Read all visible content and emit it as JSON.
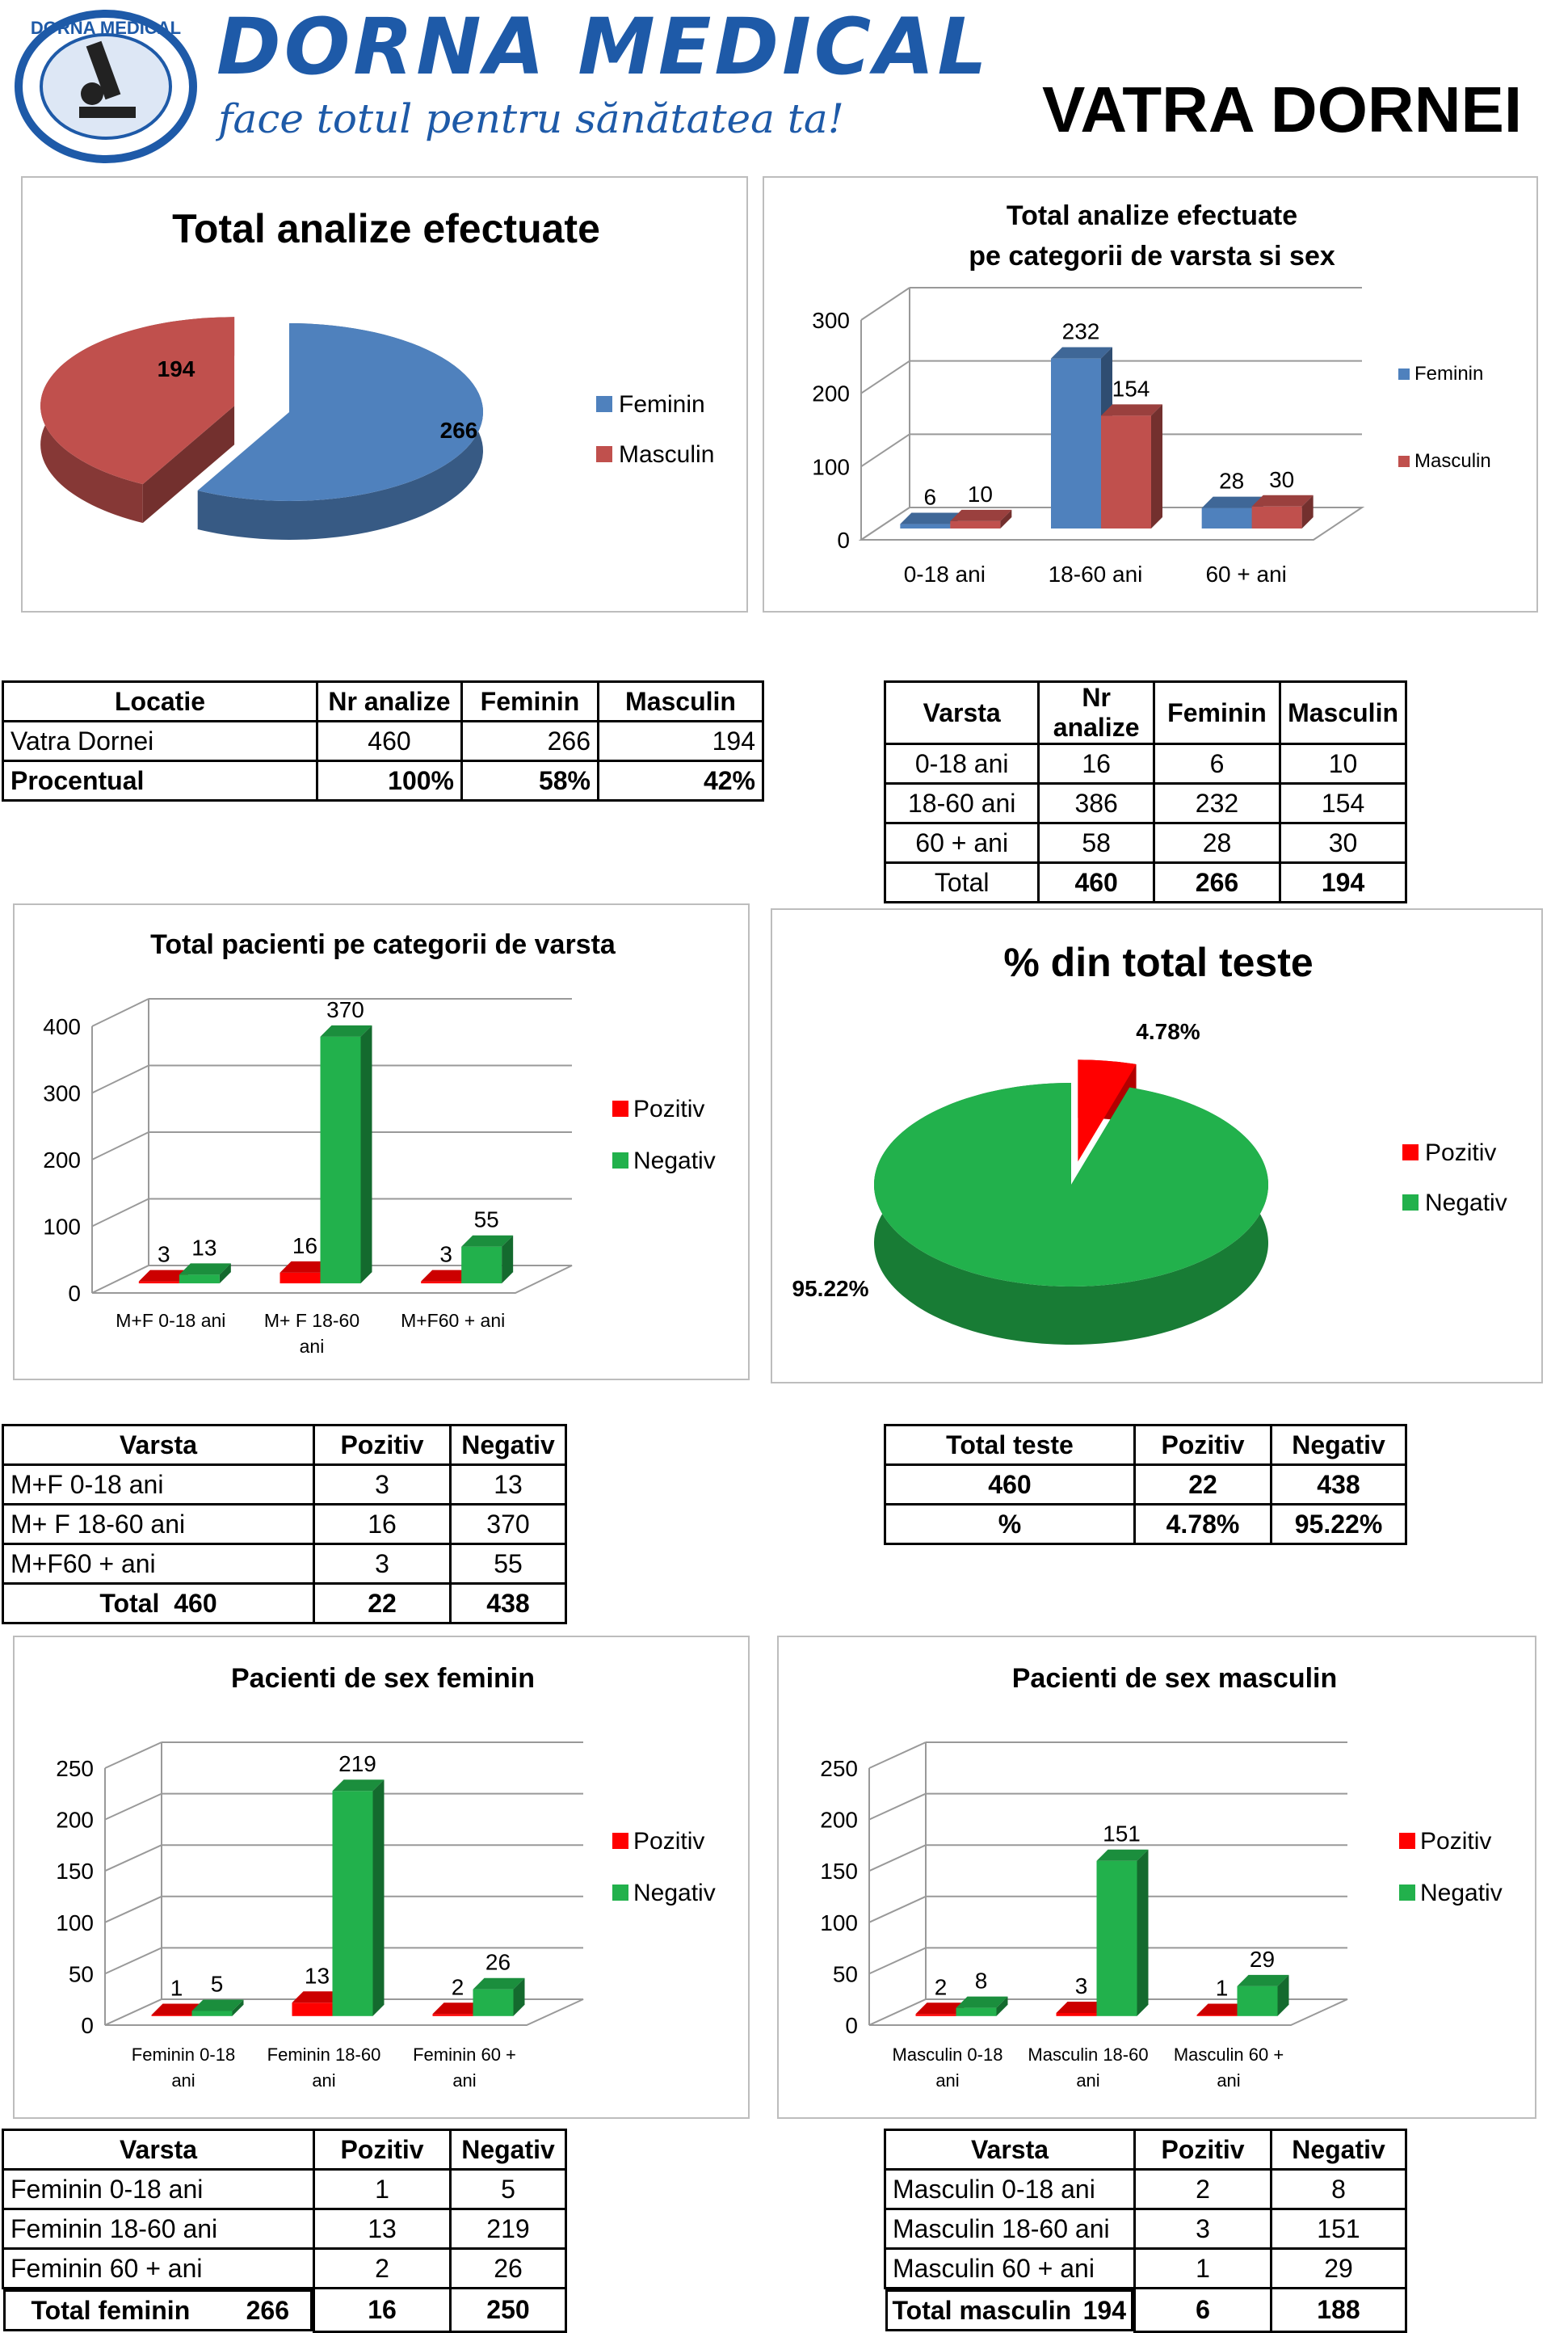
{
  "header": {
    "brand": "DORNA MEDICAL",
    "slogan": "face totul pentru sănătatea ta!",
    "location": "VATRA DORNEI",
    "logo_ring_text": "DORNA MEDICAL"
  },
  "colors": {
    "feminin": "#4f81bd",
    "masculin": "#c0504d",
    "pozitiv": "#ff0000",
    "negativ": "#22b14c",
    "brand": "#1e5aa8"
  },
  "chart_data": [
    {
      "id": "pie1",
      "type": "pie",
      "title": "Total analize efectuate",
      "labels": [
        "Feminin",
        "Masculin"
      ],
      "values": [
        266,
        194
      ],
      "data_labels": [
        "266",
        "194"
      ],
      "legend": "right"
    },
    {
      "id": "bar1",
      "type": "bar",
      "title": "Total analize efectuate",
      "subtitle": "pe categorii de varsta si sex",
      "categories": [
        "0-18 ani",
        "18-60 ani",
        "60 + ani"
      ],
      "series": [
        {
          "name": "Feminin",
          "values": [
            6,
            232,
            28
          ]
        },
        {
          "name": "Masculin",
          "values": [
            10,
            154,
            30
          ]
        }
      ],
      "ylim": [
        0,
        300
      ],
      "yticks": [
        0,
        100,
        200,
        300
      ],
      "legend": "right"
    },
    {
      "id": "bar2",
      "type": "bar",
      "title": "Total pacienti pe categorii de varsta",
      "categories": [
        "M+F 0-18 ani",
        "M+ F 18-60 ani",
        "M+F60 + ani"
      ],
      "series": [
        {
          "name": "Pozitiv",
          "values": [
            3,
            16,
            3
          ]
        },
        {
          "name": "Negativ",
          "values": [
            13,
            370,
            55
          ]
        }
      ],
      "ylim": [
        0,
        400
      ],
      "yticks": [
        0,
        100,
        200,
        300,
        400
      ],
      "legend": "right"
    },
    {
      "id": "pie2",
      "type": "pie",
      "title": "% din total teste",
      "labels": [
        "Pozitiv",
        "Negativ"
      ],
      "values": [
        4.78,
        95.22
      ],
      "data_labels": [
        "4.78%",
        "95.22%"
      ],
      "legend": "right"
    },
    {
      "id": "bar3",
      "type": "bar",
      "title": "Pacienti de sex feminin",
      "categories": [
        "Feminin 0-18 ani",
        "Feminin 18-60 ani",
        "Feminin 60 + ani"
      ],
      "series": [
        {
          "name": "Pozitiv",
          "values": [
            1,
            13,
            2
          ]
        },
        {
          "name": "Negativ",
          "values": [
            5,
            219,
            26
          ]
        }
      ],
      "ylim": [
        0,
        250
      ],
      "yticks": [
        0,
        50,
        100,
        150,
        200,
        250
      ],
      "legend": "right"
    },
    {
      "id": "bar4",
      "type": "bar",
      "title": "Pacienti de sex masculin",
      "categories": [
        "Masculin 0-18 ani",
        "Masculin 18-60 ani",
        "Masculin 60 + ani"
      ],
      "series": [
        {
          "name": "Pozitiv",
          "values": [
            2,
            3,
            1
          ]
        },
        {
          "name": "Negativ",
          "values": [
            8,
            151,
            29
          ]
        }
      ],
      "ylim": [
        0,
        250
      ],
      "yticks": [
        0,
        50,
        100,
        150,
        200,
        250
      ],
      "legend": "right"
    }
  ],
  "bar_cat_lines": {
    "bar1": [
      [
        "0-18 ani"
      ],
      [
        "18-60 ani"
      ],
      [
        "60 + ani"
      ]
    ],
    "bar2": [
      [
        "M+F 0-18 ani"
      ],
      [
        "M+ F 18-60",
        "ani"
      ],
      [
        "M+F60 + ani"
      ]
    ],
    "bar3": [
      [
        "Feminin 0-18",
        "ani"
      ],
      [
        "Feminin 18-60",
        "ani"
      ],
      [
        "Feminin 60 +",
        "ani"
      ]
    ],
    "bar4": [
      [
        "Masculin 0-18",
        "ani"
      ],
      [
        "Masculin 18-60",
        "ani"
      ],
      [
        "Masculin 60 +",
        "ani"
      ]
    ]
  },
  "tables": {
    "locatie": {
      "headers": [
        "Locatie",
        "Nr analize",
        "Feminin",
        "Masculin"
      ],
      "rows": [
        [
          "Vatra Dornei",
          "460",
          "266",
          "194"
        ],
        [
          "Procentual",
          "100%",
          "58%",
          "42%"
        ]
      ]
    },
    "varsta_sex": {
      "headers": [
        "Varsta",
        "Nr analize",
        "Feminin",
        "Masculin"
      ],
      "rows": [
        [
          "0-18 ani",
          "16",
          "6",
          "10"
        ],
        [
          "18-60 ani",
          "386",
          "232",
          "154"
        ],
        [
          "60 + ani",
          "58",
          "28",
          "30"
        ],
        [
          "Total",
          "460",
          "266",
          "194"
        ]
      ]
    },
    "varsta_test": {
      "headers": [
        "Varsta",
        "Pozitiv",
        "Negativ"
      ],
      "rows": [
        [
          "M+F 0-18 ani",
          "3",
          "13"
        ],
        [
          "M+ F 18-60 ani",
          "16",
          "370"
        ],
        [
          "M+F60 + ani",
          "3",
          "55"
        ],
        [
          "Total  460",
          "22",
          "438"
        ]
      ]
    },
    "total_teste": {
      "headers": [
        "Total teste",
        "Pozitiv",
        "Negativ"
      ],
      "rows": [
        [
          "460",
          "22",
          "438"
        ],
        [
          "%",
          "4.78%",
          "95.22%"
        ]
      ]
    },
    "feminin": {
      "headers": [
        "Varsta",
        "Pozitiv",
        "Negativ"
      ],
      "rows": [
        [
          "Feminin 0-18 ani",
          "1",
          "5"
        ],
        [
          "Feminin 18-60 ani",
          "13",
          "219"
        ],
        [
          "Feminin 60 + ani",
          "2",
          "26"
        ]
      ],
      "total": {
        "label": "Total feminin",
        "count": "266",
        "pozitiv": "16",
        "negativ": "250"
      }
    },
    "masculin": {
      "headers": [
        "Varsta",
        "Pozitiv",
        "Negativ"
      ],
      "rows": [
        [
          "Masculin 0-18 ani",
          "2",
          "8"
        ],
        [
          "Masculin 18-60 ani",
          "3",
          "151"
        ],
        [
          "Masculin 60 + ani",
          "1",
          "29"
        ]
      ],
      "total": {
        "label": "Total masculin",
        "count": "194",
        "pozitiv": "6",
        "negativ": "188"
      }
    }
  }
}
